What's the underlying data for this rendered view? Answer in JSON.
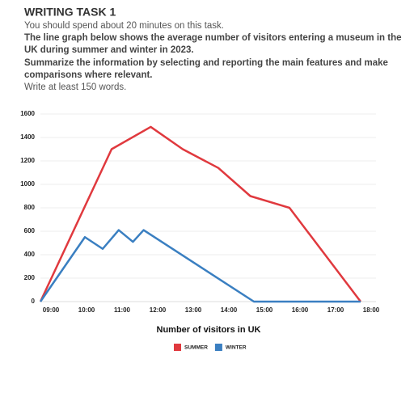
{
  "task": {
    "heading": "WRITING TASK 1",
    "lines": [
      "You should spend about 20 minutes on this task.",
      "The line graph below shows the average number of visitors entering a museum in the",
      "UK during summer and winter in 2023.",
      "Summarize the information by selecting and reporting the main features and make",
      "comparisons where relevant.",
      "Write at least 150 words."
    ]
  },
  "chart_data": {
    "type": "line",
    "xlabel": "Number of visitors in UK",
    "series": [
      {
        "name": "SUMMER",
        "color": "#e0393e",
        "x": [
          9,
          11,
          12.1,
          13,
          14,
          14.9,
          16,
          18
        ],
        "values": [
          0,
          1300,
          1490,
          1300,
          1140,
          900,
          800,
          0
        ]
      },
      {
        "name": "WINTER",
        "color": "#3a7fc1",
        "x": [
          9,
          10.25,
          10.75,
          11.2,
          11.6,
          11.9,
          15,
          18
        ],
        "values": [
          0,
          550,
          450,
          610,
          510,
          610,
          0,
          0
        ]
      }
    ],
    "xlim": [
      9,
      18
    ],
    "xticks": [
      {
        "value": 9,
        "label": "09:00"
      },
      {
        "value": 10,
        "label": "10:00"
      },
      {
        "value": 11,
        "label": "11:00"
      },
      {
        "value": 12,
        "label": "12:00"
      },
      {
        "value": 13,
        "label": "13:00"
      },
      {
        "value": 14,
        "label": "14:00"
      },
      {
        "value": 15,
        "label": "15:00"
      },
      {
        "value": 16,
        "label": "16:00"
      },
      {
        "value": 17,
        "label": "17:00"
      },
      {
        "value": 18,
        "label": "18:00"
      }
    ],
    "ylim": [
      0,
      1600
    ],
    "yticks": [
      0,
      200,
      400,
      600,
      800,
      1000,
      1200,
      1400,
      1600
    ],
    "grid": true
  }
}
